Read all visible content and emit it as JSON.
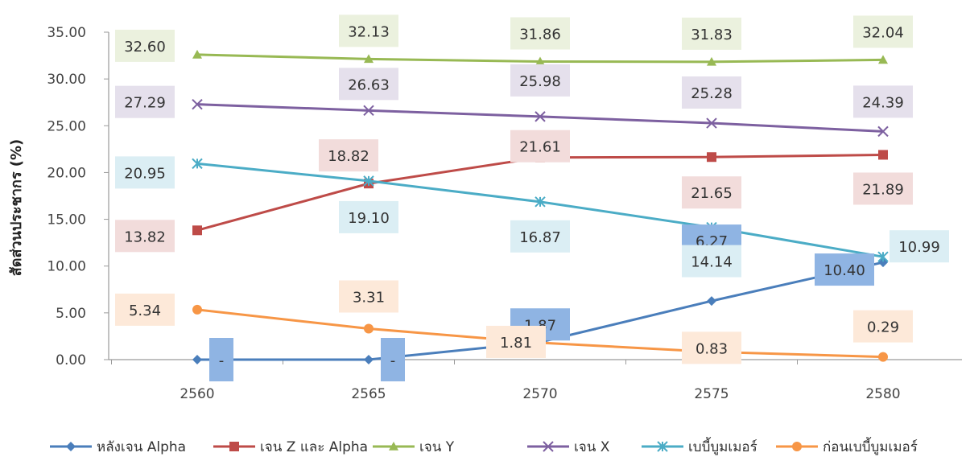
{
  "chart_data": {
    "type": "line",
    "ylabel": "สัดส่วนประชากร (%)",
    "xlabel": "",
    "x": [
      "2560",
      "2565",
      "2570",
      "2575",
      "2580"
    ],
    "ylim": [
      0,
      35
    ],
    "yticks": [
      "0.00",
      "5.00",
      "10.00",
      "15.00",
      "20.00",
      "25.00",
      "30.00",
      "35.00"
    ],
    "grid": false,
    "legend_position": "bottom",
    "series": [
      {
        "name": "หลังเจน Alpha",
        "color": "#4a7ebb",
        "label_bg": "#8fb4e3",
        "marker": "diamond",
        "values": [
          0,
          0,
          1.87,
          6.27,
          10.4
        ],
        "labels": [
          "-",
          "-",
          "1.87",
          "6.27",
          "10.40"
        ]
      },
      {
        "name": "เจน Z และ Alpha",
        "color": "#be4b48",
        "label_bg": "#f2dcdb",
        "marker": "square",
        "values": [
          13.82,
          18.82,
          21.61,
          21.65,
          21.89
        ],
        "labels": [
          "13.82",
          "18.82",
          "21.61",
          "21.65",
          "21.89"
        ]
      },
      {
        "name": "เจน Y",
        "color": "#98b954",
        "label_bg": "#ebf1de",
        "marker": "triangle",
        "values": [
          32.6,
          32.13,
          31.86,
          31.83,
          32.04
        ],
        "labels": [
          "32.60",
          "32.13",
          "31.86",
          "31.83",
          "32.04"
        ]
      },
      {
        "name": "เจน X",
        "color": "#7d60a0",
        "label_bg": "#e5e0ec",
        "marker": "x",
        "values": [
          27.29,
          26.63,
          25.98,
          25.28,
          24.39
        ],
        "labels": [
          "27.29",
          "26.63",
          "25.98",
          "25.28",
          "24.39"
        ]
      },
      {
        "name": "เบบี้บูมเมอร์",
        "color": "#4bacc6",
        "label_bg": "#dbeef4",
        "marker": "star",
        "values": [
          20.95,
          19.1,
          16.87,
          14.14,
          10.99
        ],
        "labels": [
          "20.95",
          "19.10",
          "16.87",
          "14.14",
          "10.99"
        ]
      },
      {
        "name": "ก่อนเบบี้บูมเมอร์",
        "color": "#f79646",
        "label_bg": "#fde9d9",
        "marker": "circle",
        "values": [
          5.34,
          3.31,
          1.81,
          0.83,
          0.29
        ],
        "labels": [
          "5.34",
          "3.31",
          "1.81",
          "0.83",
          "0.29"
        ]
      }
    ]
  }
}
